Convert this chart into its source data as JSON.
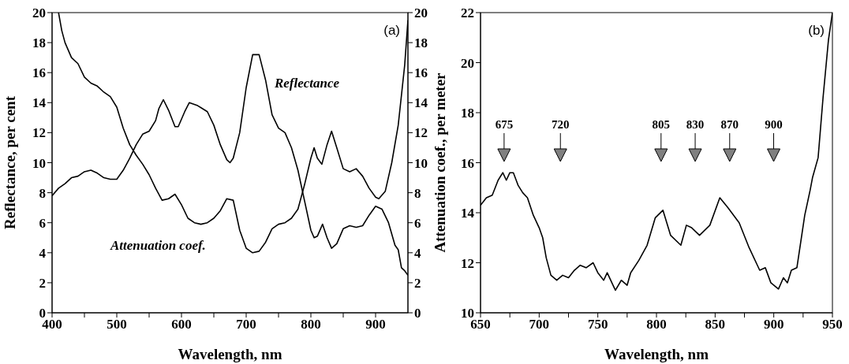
{
  "chart_data": [
    {
      "type": "line",
      "annotations": [
        "(a)"
      ],
      "xlabel": "Wavelength, nm",
      "ylabel": "Reflectance, per cent",
      "xlim": [
        400,
        950
      ],
      "xticks": [
        400,
        {
          "value": 450,
          "label": null
        },
        500,
        {
          "value": 550,
          "label": null
        },
        600,
        {
          "value": 650,
          "label": null
        },
        700,
        {
          "value": 750,
          "label": null
        },
        800,
        {
          "value": 850,
          "label": null
        },
        900
      ],
      "ylim": [
        0,
        20
      ],
      "yticks": [
        0,
        2,
        4,
        6,
        8,
        10,
        12,
        14,
        16,
        18,
        20
      ],
      "y2lim": [
        0,
        20
      ],
      "y2ticks": [
        0,
        2,
        4,
        6,
        8,
        10,
        12,
        14,
        16,
        18,
        20
      ],
      "series": [
        {
          "name": "Reflectance",
          "color": "#000000",
          "x": [
            400,
            410,
            420,
            430,
            440,
            450,
            460,
            470,
            480,
            490,
            500,
            510,
            520,
            530,
            540,
            550,
            560,
            565,
            572,
            580,
            590,
            595,
            605,
            612,
            625,
            640,
            650,
            660,
            670,
            675,
            680,
            690,
            700,
            710,
            720,
            730,
            740,
            750,
            760,
            770,
            780,
            790,
            800,
            805,
            810,
            818,
            825,
            832,
            840,
            850,
            860,
            870,
            880,
            890,
            900,
            910,
            920,
            930,
            935,
            940,
            945,
            950
          ],
          "values": [
            7.8,
            8.3,
            8.6,
            9.0,
            9.1,
            9.4,
            9.5,
            9.3,
            9.0,
            8.9,
            8.9,
            9.5,
            10.3,
            11.2,
            11.9,
            12.1,
            12.8,
            13.6,
            14.2,
            13.5,
            12.4,
            12.4,
            13.4,
            14.0,
            13.8,
            13.4,
            12.5,
            11.2,
            10.2,
            10.0,
            10.3,
            12.0,
            15.0,
            17.2,
            17.2,
            15.5,
            13.2,
            12.3,
            12.0,
            11.0,
            9.5,
            7.5,
            5.5,
            5.0,
            5.1,
            5.9,
            5.0,
            4.3,
            4.6,
            5.6,
            5.8,
            5.7,
            5.8,
            6.5,
            7.1,
            6.9,
            6.0,
            4.5,
            4.2,
            3.0,
            2.8,
            2.5
          ]
        },
        {
          "name": "Attenuation coef.",
          "color": "#000000",
          "x": [
            410,
            415,
            420,
            425,
            430,
            440,
            450,
            460,
            470,
            480,
            490,
            500,
            510,
            520,
            530,
            540,
            550,
            560,
            570,
            580,
            590,
            600,
            610,
            620,
            630,
            640,
            650,
            660,
            670,
            680,
            690,
            700,
            710,
            720,
            730,
            740,
            750,
            760,
            770,
            780,
            790,
            800,
            805,
            810,
            817,
            825,
            832,
            840,
            850,
            860,
            870,
            880,
            890,
            900,
            905,
            915,
            925,
            935,
            945,
            950
          ],
          "values": [
            20,
            18.8,
            18.0,
            17.5,
            17.0,
            16.6,
            15.7,
            15.3,
            15.1,
            14.7,
            14.4,
            13.7,
            12.3,
            11.2,
            10.5,
            9.9,
            9.2,
            8.3,
            7.5,
            7.6,
            7.9,
            7.2,
            6.3,
            6.0,
            5.9,
            6.0,
            6.3,
            6.8,
            7.6,
            7.5,
            5.5,
            4.3,
            4.0,
            4.1,
            4.7,
            5.6,
            5.9,
            6.0,
            6.3,
            6.9,
            8.5,
            10.3,
            11.0,
            10.3,
            9.9,
            11.2,
            12.1,
            11.0,
            9.6,
            9.4,
            9.6,
            9.1,
            8.3,
            7.7,
            7.6,
            8.1,
            10.0,
            12.5,
            16.5,
            19.5
          ]
        }
      ]
    },
    {
      "type": "line",
      "annotations": [
        "(b)",
        "675",
        "720",
        "805",
        "830",
        "870",
        "900"
      ],
      "xlabel": "Wavelength, nm",
      "ylabel": "Attenuation coef., per meter",
      "xlim": [
        650,
        950
      ],
      "xticks": [
        650,
        {
          "value": 675,
          "label": null
        },
        700,
        {
          "value": 725,
          "label": null
        },
        750,
        {
          "value": 775,
          "label": null
        },
        800,
        {
          "value": 825,
          "label": null
        },
        850,
        {
          "value": 875,
          "label": null
        },
        900,
        {
          "value": 925,
          "label": null
        },
        950
      ],
      "ylim": [
        10,
        22
      ],
      "yticks": [
        10,
        12,
        14,
        16,
        18,
        20,
        22
      ],
      "series": [
        {
          "color": "#000000",
          "x": [
            650,
            655,
            660,
            665,
            669,
            672,
            675,
            678,
            682,
            686,
            690,
            695,
            700,
            703,
            706,
            710,
            715,
            720,
            725,
            730,
            735,
            740,
            746,
            750,
            755,
            758,
            763,
            765,
            770,
            775,
            778,
            785,
            792,
            799,
            805.5,
            812,
            820.8,
            825.5,
            830,
            836.7,
            845.5,
            854,
            861,
            870.5,
            879,
            888,
            892.8,
            897.5,
            904,
            908.2,
            911.6,
            915,
            919.7,
            926.4,
            931,
            933,
            937.8,
            942,
            946.6,
            950
          ],
          "values": [
            14.3,
            14.6,
            14.7,
            15.3,
            15.6,
            15.3,
            15.6,
            15.6,
            15.1,
            14.8,
            14.6,
            13.9,
            13.4,
            13.0,
            12.2,
            11.5,
            11.3,
            11.5,
            11.4,
            11.7,
            11.9,
            11.8,
            12.0,
            11.6,
            11.3,
            11.6,
            11.1,
            10.9,
            11.3,
            11.1,
            11.6,
            12.1,
            12.7,
            13.8,
            14.1,
            13.1,
            12.7,
            13.5,
            13.4,
            13.1,
            13.5,
            14.6,
            14.2,
            13.6,
            12.6,
            11.7,
            11.8,
            11.2,
            10.95,
            11.4,
            11.2,
            11.7,
            11.8,
            13.9,
            14.9,
            15.4,
            16.2,
            18.6,
            20.9,
            22
          ]
        }
      ]
    }
  ]
}
